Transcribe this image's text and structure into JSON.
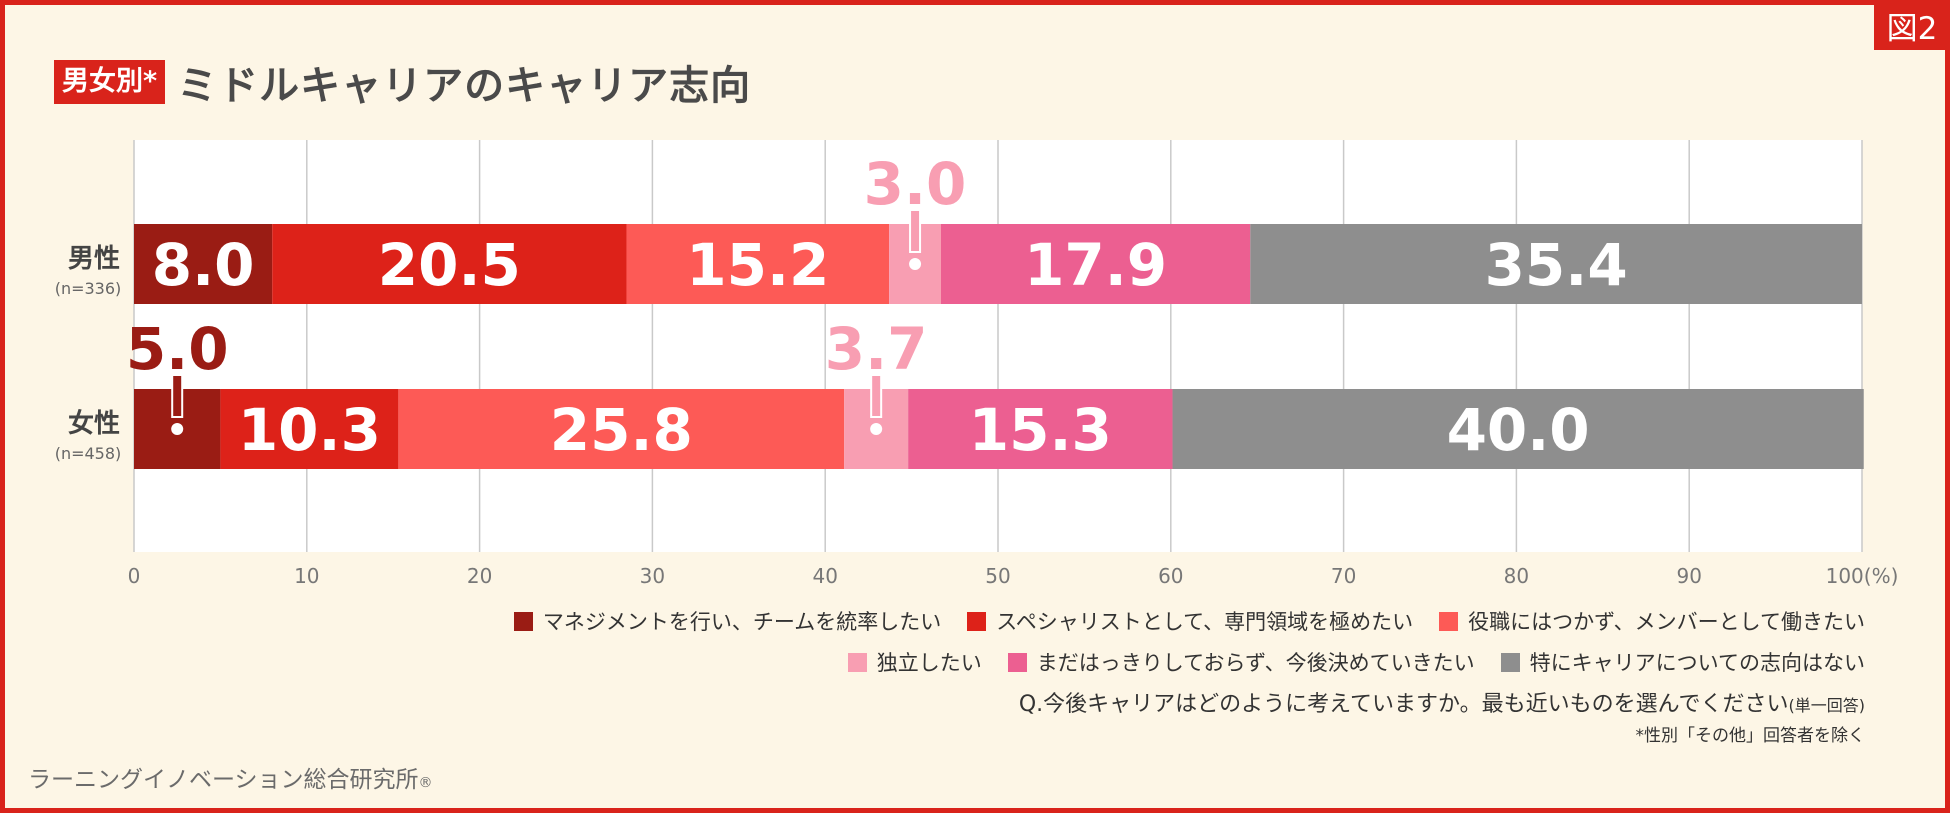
{
  "figure_tag": "図2",
  "title_badge": "男女別*",
  "title": "ミドルキャリアのキャリア志向",
  "question_main": "Q.今後キャリアはどのように考えていますか。最も近いものを選んでください",
  "question_note": "(単一回答)",
  "footnote": "*性別「その他」回答者を除く",
  "publisher": "ラーニングイノベーション総合研究所",
  "publisher_mark": "®",
  "colors": {
    "frame": "#d9231b",
    "background": "#fdf6e6",
    "management": "#9a1c14",
    "specialist": "#dd2219",
    "no_title": "#fd5a56",
    "independent": "#f89eb2",
    "undecided": "#ec5f91",
    "no_intention": "#8e8e8e"
  },
  "chart_data": {
    "type": "bar",
    "orientation": "horizontal",
    "stacked": true,
    "categories": [
      {
        "name": "男性",
        "sample": "(n=336)"
      },
      {
        "name": "女性",
        "sample": "(n=458)"
      }
    ],
    "series": [
      {
        "name": "マネジメントを行い、チームを統率したい",
        "color": "#9a1c14",
        "values": [
          8.0,
          5.0
        ]
      },
      {
        "name": "スペシャリストとして、専門領域を極めたい",
        "color": "#dd2219",
        "values": [
          20.5,
          10.3
        ]
      },
      {
        "name": "役職にはつかず、メンバーとして働きたい",
        "color": "#fd5a56",
        "values": [
          15.2,
          25.8
        ]
      },
      {
        "name": "独立したい",
        "color": "#f89eb2",
        "values": [
          3.0,
          3.7
        ]
      },
      {
        "name": "まだはっきりしておらず、今後決めていきたい",
        "color": "#ec5f91",
        "values": [
          17.9,
          15.3
        ]
      },
      {
        "name": "特にキャリアについての志向はない",
        "color": "#8e8e8e",
        "values": [
          35.4,
          40.0
        ]
      }
    ],
    "value_labels": [
      [
        "8.0",
        "20.5",
        "15.2",
        "3.0",
        "17.9",
        "35.4"
      ],
      [
        "5.0",
        "10.3",
        "25.8",
        "3.7",
        "15.3",
        "40.0"
      ]
    ],
    "x_ticks": [
      "0",
      "10",
      "20",
      "30",
      "40",
      "50",
      "60",
      "70",
      "80",
      "90",
      "100(%)"
    ],
    "xlim": [
      0,
      100
    ],
    "grid": true,
    "legend_position": "bottom-right"
  }
}
